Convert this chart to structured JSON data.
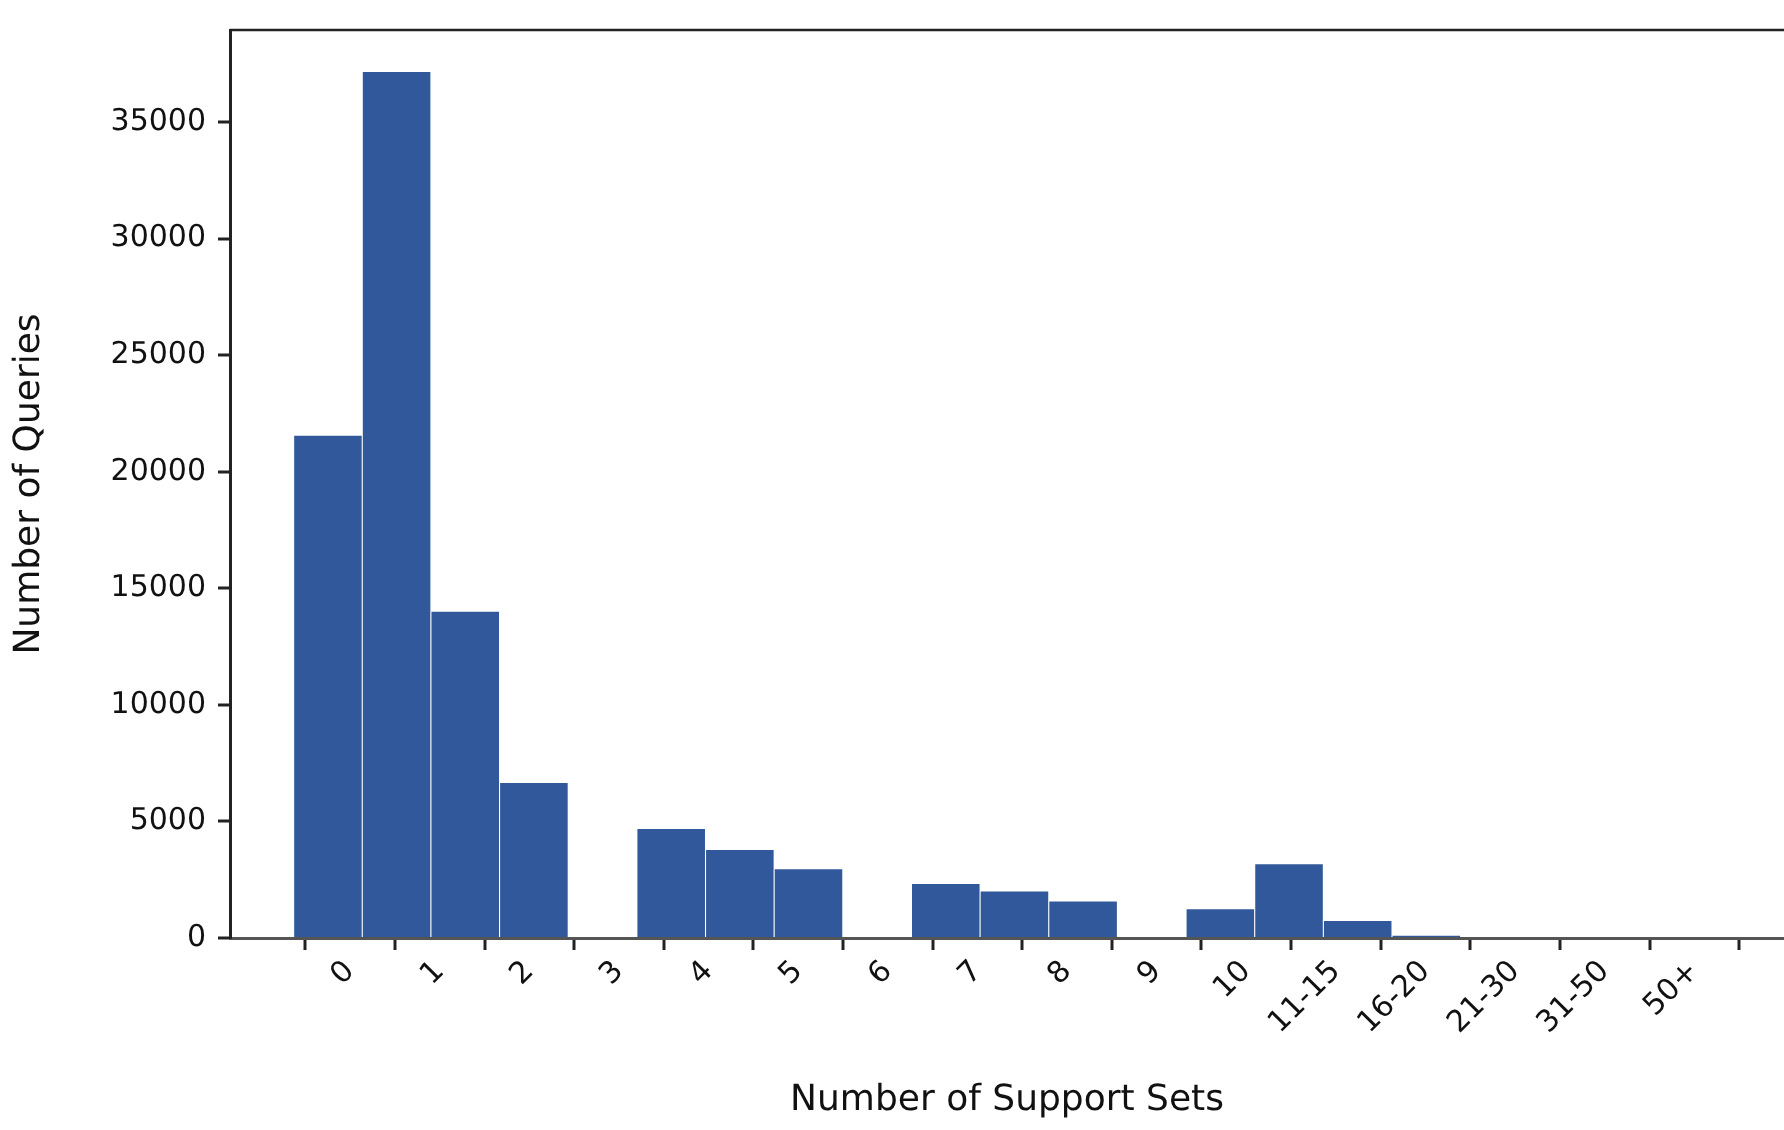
{
  "chart_data": {
    "type": "histogram",
    "xlabel": "Number of Support Sets",
    "ylabel": "Number of Queries",
    "bins": [
      -0.63,
      0.136,
      0.902,
      1.668,
      2.434,
      3.2,
      3.966,
      4.732,
      5.498,
      6.264,
      7.03,
      7.796,
      8.562,
      9.328,
      10.094,
      10.86,
      11.626,
      12.392
    ],
    "values": [
      21550,
      37150,
      14000,
      6650,
      0,
      4680,
      3780,
      2950,
      0,
      2320,
      1990,
      1570,
      0,
      1230,
      3160,
      730,
      100
    ],
    "color": "#30589a",
    "xlim": [
      -1.34,
      16
    ],
    "ylim": [
      0,
      38950
    ],
    "xticks": [
      {
        "value": 0,
        "label": "0"
      },
      {
        "value": 1,
        "label": "1"
      },
      {
        "value": 2,
        "label": "2"
      },
      {
        "value": 3,
        "label": "3"
      },
      {
        "value": 4,
        "label": "4"
      },
      {
        "value": 5,
        "label": "5"
      },
      {
        "value": 6,
        "label": "6"
      },
      {
        "value": 7,
        "label": "7"
      },
      {
        "value": 8,
        "label": "8"
      },
      {
        "value": 9,
        "label": "9"
      },
      {
        "value": 10,
        "label": "10"
      },
      {
        "value": 11,
        "label": "11-15"
      },
      {
        "value": 12,
        "label": "16-20"
      },
      {
        "value": 13,
        "label": "21-30"
      },
      {
        "value": 14,
        "label": "31-50"
      },
      {
        "value": 15,
        "label": "50+"
      }
    ],
    "yticks": [
      0,
      5000,
      10000,
      15000,
      20000,
      25000,
      30000,
      35000
    ],
    "grid": false,
    "legend": false
  }
}
